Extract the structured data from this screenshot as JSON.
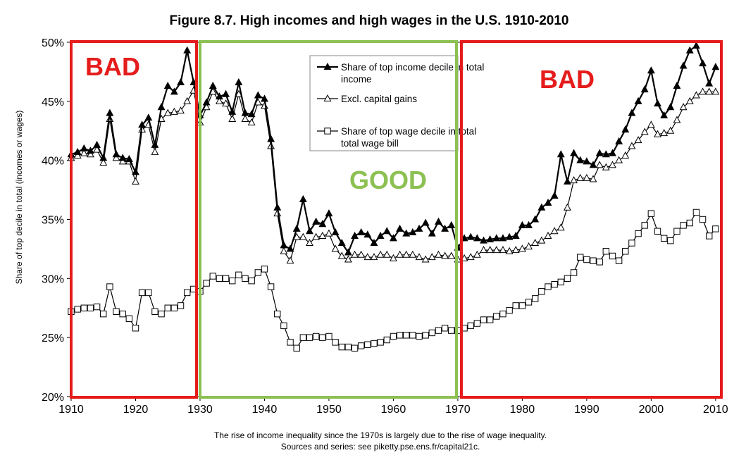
{
  "colors": {
    "bad": "#e51c1c",
    "good": "#8cc152",
    "line": "#000000"
  },
  "chart_data": {
    "type": "line",
    "title": "Figure 8.7. High incomes and high wages in the U.S. 1910-2010",
    "ylabel": "Share of top decile in total (incomes or wages)",
    "xlabel": "",
    "xlim": [
      1910,
      2011
    ],
    "ylim": [
      20,
      50
    ],
    "x_ticks": [
      "1910",
      "1920",
      "1930",
      "1940",
      "1950",
      "1960",
      "1970",
      "1980",
      "1990",
      "2000",
      "2010"
    ],
    "y_ticks": [
      "20%",
      "25%",
      "30%",
      "35%",
      "40%",
      "45%",
      "50%"
    ],
    "caption": [
      "The rise of income inequality since the 1970s is largely due to the rise of wage inequality.",
      "Sources and series: see piketty.pse.ens.fr/capital21c."
    ],
    "legend": [
      {
        "marker": "triangle-filled",
        "lines": [
          "Share of top income decile in total",
          "income"
        ]
      },
      {
        "marker": "triangle-open",
        "lines": [
          "Excl. capital gains"
        ]
      },
      {
        "marker": "square-open",
        "lines": [
          "Share of top wage decile in total",
          "total wage bill"
        ]
      }
    ],
    "x": [
      1910,
      1911,
      1912,
      1913,
      1914,
      1915,
      1916,
      1917,
      1918,
      1919,
      1920,
      1921,
      1922,
      1923,
      1924,
      1925,
      1926,
      1927,
      1928,
      1929,
      1930,
      1931,
      1932,
      1933,
      1934,
      1935,
      1936,
      1937,
      1938,
      1939,
      1940,
      1941,
      1942,
      1943,
      1944,
      1945,
      1946,
      1947,
      1948,
      1949,
      1950,
      1951,
      1952,
      1953,
      1954,
      1955,
      1956,
      1957,
      1958,
      1959,
      1960,
      1961,
      1962,
      1963,
      1964,
      1965,
      1966,
      1967,
      1968,
      1969,
      1970,
      1971,
      1972,
      1973,
      1974,
      1975,
      1976,
      1977,
      1978,
      1979,
      1980,
      1981,
      1982,
      1983,
      1984,
      1985,
      1986,
      1987,
      1988,
      1989,
      1990,
      1991,
      1992,
      1993,
      1994,
      1995,
      1996,
      1997,
      1998,
      1999,
      2000,
      2001,
      2002,
      2003,
      2004,
      2005,
      2006,
      2007,
      2008,
      2009,
      2010
    ],
    "series": [
      {
        "marker": "triangle-filled",
        "values": [
          40.5,
          40.7,
          41.0,
          40.8,
          41.3,
          40.2,
          44.0,
          40.5,
          40.2,
          40.1,
          39.0,
          43.0,
          43.6,
          41.3,
          44.5,
          46.3,
          45.8,
          46.6,
          49.3,
          46.6,
          43.8,
          44.9,
          46.3,
          45.4,
          45.6,
          44.1,
          46.6,
          44.0,
          43.9,
          45.5,
          45.2,
          41.8,
          36.0,
          32.8,
          32.5,
          34.2,
          36.7,
          34.0,
          34.8,
          34.6,
          35.5,
          33.9,
          33.0,
          32.2,
          33.6,
          33.9,
          33.7,
          33.0,
          33.6,
          34.0,
          33.4,
          34.2,
          33.8,
          33.9,
          34.2,
          34.7,
          33.8,
          34.8,
          34.2,
          34.5,
          32.6,
          33.4,
          33.5,
          33.4,
          33.2,
          33.3,
          33.4,
          33.4,
          33.5,
          33.6,
          34.5,
          34.5,
          35.0,
          36.0,
          36.4,
          37.0,
          40.5,
          38.2,
          40.6,
          40.0,
          39.9,
          39.6,
          40.6,
          40.5,
          40.6,
          41.6,
          42.6,
          44.0,
          45.0,
          46.0,
          47.6,
          44.8,
          43.8,
          44.5,
          46.3,
          48.0,
          49.3,
          49.7,
          48.2,
          46.5,
          47.9
        ]
      },
      {
        "marker": "triangle-open",
        "values": [
          40.2,
          40.4,
          40.6,
          40.5,
          40.9,
          39.8,
          43.5,
          40.2,
          39.9,
          39.9,
          38.2,
          42.6,
          43.0,
          40.7,
          43.5,
          44.0,
          44.1,
          44.2,
          45.0,
          45.9,
          43.2,
          44.5,
          45.8,
          45.0,
          44.8,
          43.5,
          45.6,
          43.5,
          43.2,
          44.9,
          44.6,
          41.2,
          35.5,
          32.3,
          31.5,
          33.5,
          33.5,
          33.0,
          33.5,
          33.6,
          33.8,
          32.5,
          31.9,
          31.6,
          32.0,
          32.0,
          31.8,
          31.8,
          32.0,
          32.0,
          31.7,
          32.0,
          32.0,
          32.0,
          31.8,
          31.6,
          31.8,
          32.0,
          31.9,
          31.9,
          31.6,
          31.7,
          31.8,
          32.0,
          32.4,
          32.4,
          32.4,
          32.4,
          32.3,
          32.4,
          32.5,
          32.7,
          33.0,
          33.2,
          33.6,
          34.0,
          34.3,
          36.0,
          38.3,
          38.5,
          38.5,
          38.4,
          39.6,
          39.4,
          39.6,
          40.0,
          40.4,
          41.2,
          41.7,
          42.4,
          43.0,
          42.2,
          42.3,
          42.5,
          43.4,
          44.5,
          45.0,
          45.5,
          45.8,
          45.8,
          45.8
        ]
      },
      {
        "marker": "square-open",
        "values": [
          27.2,
          27.4,
          27.5,
          27.5,
          27.6,
          27.0,
          29.3,
          27.2,
          27.0,
          26.6,
          25.8,
          28.8,
          28.8,
          27.2,
          27.0,
          27.5,
          27.5,
          27.7,
          28.8,
          29.1,
          28.9,
          29.6,
          30.2,
          30.0,
          30.0,
          29.8,
          30.3,
          30.0,
          29.8,
          30.5,
          30.8,
          29.3,
          27.0,
          26.0,
          24.6,
          24.1,
          25.0,
          25.0,
          25.1,
          25.0,
          25.1,
          24.6,
          24.2,
          24.2,
          24.1,
          24.3,
          24.4,
          24.5,
          24.6,
          24.8,
          25.1,
          25.2,
          25.2,
          25.2,
          25.1,
          25.2,
          25.4,
          25.6,
          25.8,
          25.6,
          25.6,
          25.8,
          26.0,
          26.2,
          26.5,
          26.5,
          26.8,
          27.0,
          27.3,
          27.7,
          27.7,
          28.0,
          28.3,
          28.9,
          29.3,
          29.5,
          29.7,
          30.0,
          30.5,
          31.8,
          31.6,
          31.5,
          31.4,
          32.3,
          31.9,
          31.5,
          32.3,
          33.0,
          33.8,
          34.5,
          35.5,
          34.0,
          33.4,
          33.2,
          34.0,
          34.5,
          34.7,
          35.6,
          35.0,
          33.6,
          34.2
        ]
      }
    ]
  },
  "overlays": [
    {
      "label": "BAD",
      "color": "bad"
    },
    {
      "label": "GOOD",
      "color": "good"
    },
    {
      "label": "BAD",
      "color": "bad"
    }
  ]
}
